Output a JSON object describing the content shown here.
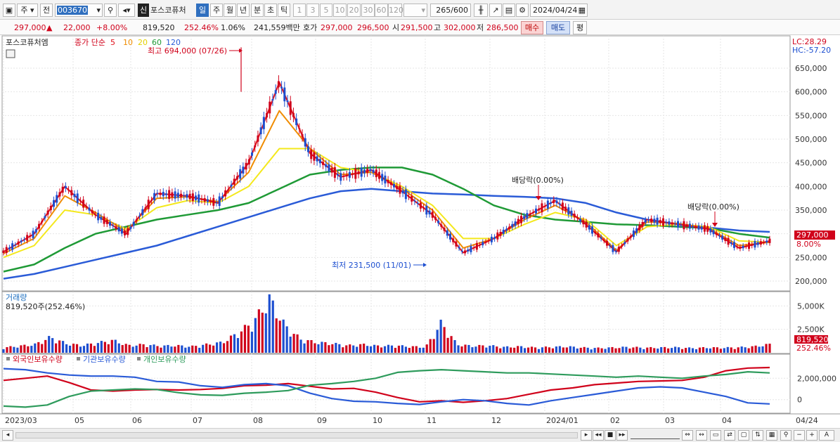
{
  "toolbar": {
    "mode_main": "주",
    "mode_prev": "전",
    "code": "003670",
    "new_badge": "신",
    "stock_name": "포스코퓨처",
    "periods": [
      "일",
      "주",
      "월",
      "년",
      "분",
      "초",
      "틱"
    ],
    "selected_period": "일",
    "intervals": [
      "1",
      "3",
      "5",
      "10",
      "20",
      "30",
      "60",
      "120"
    ],
    "count": "265",
    "count_total": "/600",
    "date": "2024/04/24"
  },
  "info": {
    "price": "297,000",
    "change_arrow": "▲",
    "change": "22,000",
    "change_pct": "+8.00%",
    "volume": "819,520",
    "volume_pct": "252.46%",
    "turnover": "1.06%",
    "amount": "241,559백만",
    "quote_label": "호가",
    "ask": "297,000",
    "bid": "296,500",
    "open_label": "시",
    "open": "291,500",
    "high_label": "고",
    "high": "302,000",
    "low_label": "저",
    "low": "286,500",
    "buy_label": "매수",
    "sell_label": "매도",
    "avg_label": "평"
  },
  "colors": {
    "up": "#d0021b",
    "down": "#1d4fd0",
    "ma5": "#e0101a",
    "ma10": "#f08c00",
    "ma20": "#f4e81c",
    "ma60": "#1f9a36",
    "ma120": "#2a5bd7",
    "foreign": "#d0021b",
    "institution": "#2a5bd7",
    "individual": "#2e9b5c"
  },
  "chart_data": [
    {
      "type": "candlestick",
      "title": "포스코퓨처엠",
      "legend": {
        "label": "종가 단순",
        "periods": [
          "5",
          "10",
          "20",
          "60",
          "120"
        ]
      },
      "price_ticks": [
        "650,000",
        "600,000",
        "550,000",
        "500,000",
        "450,000",
        "400,000",
        "350,000",
        "300,000",
        "250,000",
        "200,000"
      ],
      "ylim": [
        180000,
        700000
      ],
      "lc_label": "LC:28.29",
      "hc_label": "HC:-57.20",
      "last_price_label": "297,000",
      "last_change_label": "8.00%",
      "annotations": {
        "high": "최고 694,000 (07/26)",
        "low": "최저 231,500 (11/01)",
        "dividend1": "배당락(0.00%)",
        "dividend2": "배당락(0.00%)"
      },
      "x_labels": [
        "2023/03",
        "05",
        "06",
        "07",
        "08",
        "09",
        "10",
        "11",
        "12",
        "2024/01",
        "02",
        "03",
        "04",
        "04/24"
      ],
      "series": [
        {
          "name": "5",
          "values": [
            262000,
            300000,
            400000,
            340000,
            300000,
            385000,
            380000,
            365000,
            450000,
            620000,
            470000,
            420000,
            435000,
            390000,
            340000,
            260000,
            290000,
            335000,
            370000,
            320000,
            262000,
            330000,
            320000,
            310000,
            270000,
            285000
          ]
        },
        {
          "name": "10",
          "values": [
            258000,
            290000,
            380000,
            345000,
            305000,
            375000,
            378000,
            368000,
            430000,
            560000,
            480000,
            425000,
            430000,
            395000,
            350000,
            270000,
            290000,
            330000,
            360000,
            325000,
            265000,
            325000,
            322000,
            312000,
            275000,
            282000
          ]
        },
        {
          "name": "20",
          "values": [
            250000,
            275000,
            350000,
            340000,
            310000,
            355000,
            370000,
            365000,
            400000,
            480000,
            480000,
            440000,
            430000,
            400000,
            360000,
            290000,
            290000,
            320000,
            345000,
            330000,
            275000,
            315000,
            320000,
            315000,
            285000,
            282000
          ]
        },
        {
          "name": "60",
          "values": [
            220000,
            235000,
            270000,
            300000,
            315000,
            330000,
            340000,
            350000,
            365000,
            395000,
            425000,
            435000,
            440000,
            440000,
            425000,
            395000,
            360000,
            340000,
            330000,
            325000,
            320000,
            318000,
            315000,
            312000,
            300000,
            292000
          ]
        },
        {
          "name": "120",
          "values": [
            205000,
            215000,
            230000,
            245000,
            260000,
            275000,
            295000,
            315000,
            335000,
            355000,
            375000,
            390000,
            395000,
            390000,
            385000,
            383000,
            380000,
            378000,
            375000,
            365000,
            345000,
            330000,
            320000,
            313000,
            307000,
            304000
          ]
        }
      ]
    },
    {
      "type": "bar",
      "title": "거래량",
      "current_label": "819,520주(252.46%)",
      "ticks": [
        "5,000K",
        "2,500K"
      ],
      "ylim": [
        0,
        6000
      ],
      "last_label": "819,520",
      "last_pct_label": "252.46%",
      "values": [
        500,
        650,
        800,
        1500,
        900,
        700,
        950,
        1200,
        700,
        800,
        650,
        700,
        600,
        800,
        1000,
        1900,
        3000,
        5200,
        2600,
        1300,
        1000,
        900,
        700,
        800,
        650,
        700,
        600,
        550,
        2900,
        800,
        650,
        700,
        550,
        600,
        500,
        550,
        600,
        500,
        450,
        500,
        550,
        480,
        500,
        520,
        450,
        500,
        480,
        520,
        600,
        819
      ]
    },
    {
      "type": "line",
      "legend": [
        "외국인보유수량",
        "기관보유수량",
        "개인보유수량"
      ],
      "ticks": [
        "2,000,000",
        "0"
      ],
      "ylim": [
        -1200000,
        3200000
      ],
      "series": [
        {
          "name": "외국인보유수량",
          "values": [
            1800000,
            2000000,
            2200000,
            1600000,
            900000,
            800000,
            900000,
            950000,
            900000,
            950000,
            1050000,
            1300000,
            1350000,
            1500000,
            1250000,
            1000000,
            1050000,
            700000,
            200000,
            -200000,
            -100000,
            -250000,
            -100000,
            100000,
            500000,
            900000,
            1100000,
            1400000,
            1550000,
            1700000,
            1750000,
            1800000,
            2100000,
            2700000,
            2950000,
            3000000
          ]
        },
        {
          "name": "기관보유수량",
          "values": [
            2900000,
            2800000,
            2500000,
            2300000,
            2200000,
            2200000,
            2100000,
            1700000,
            1650000,
            1300000,
            1150000,
            1400000,
            1500000,
            1300000,
            600000,
            100000,
            -150000,
            -200000,
            -350000,
            -450000,
            -200000,
            0,
            -100000,
            -350000,
            -500000,
            -100000,
            200000,
            500000,
            800000,
            1100000,
            1200000,
            1100000,
            700000,
            300000,
            -300000,
            -400000
          ]
        },
        {
          "name": "개인보유수량",
          "values": [
            -600000,
            -700000,
            -500000,
            300000,
            800000,
            900000,
            1000000,
            950000,
            650000,
            450000,
            400000,
            600000,
            700000,
            850000,
            1350000,
            1500000,
            1700000,
            2000000,
            2550000,
            2700000,
            2800000,
            2700000,
            2600000,
            2500000,
            2500000,
            2400000,
            2300000,
            2200000,
            2100000,
            2200000,
            2100000,
            2000000,
            2200000,
            2350000,
            2600000,
            2500000
          ]
        }
      ]
    }
  ]
}
